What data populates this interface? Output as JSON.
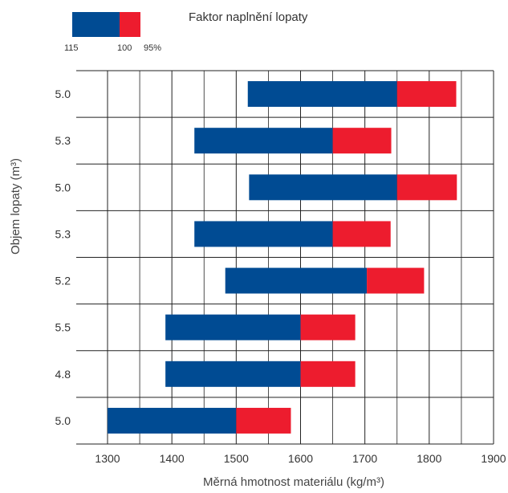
{
  "chart_data": {
    "type": "bar",
    "title": "Faktor naplnění lopaty",
    "xlabel": "Měrná hmotnost materiálu (kg/m³)",
    "ylabel": "Objem lopaty (m³)",
    "xlim": [
      1300,
      1900
    ],
    "x_ticks": [
      "1300",
      "1400",
      "1500",
      "1600",
      "1700",
      "1800",
      "1900"
    ],
    "grid": true,
    "legend": {
      "position": "top-left",
      "labels": [
        "115",
        "100",
        "95%"
      ]
    },
    "colors": {
      "blue": "#004B93",
      "red": "#ED1C2E",
      "grid": "#222222"
    },
    "categories": [
      "5.0",
      "5.3",
      "5.0",
      "5.3",
      "5.2",
      "5.5",
      "4.8",
      "5.0"
    ],
    "bars": [
      {
        "label": "5.0",
        "start": 1518,
        "mid": 1750,
        "end": 1842
      },
      {
        "label": "5.3",
        "start": 1435,
        "mid": 1650,
        "end": 1741
      },
      {
        "label": "5.0",
        "start": 1520,
        "mid": 1750,
        "end": 1843
      },
      {
        "label": "5.3",
        "start": 1435,
        "mid": 1650,
        "end": 1740
      },
      {
        "label": "5.2",
        "start": 1483,
        "mid": 1703,
        "end": 1792
      },
      {
        "label": "5.5",
        "start": 1390,
        "mid": 1600,
        "end": 1685
      },
      {
        "label": "4.8",
        "start": 1390,
        "mid": 1600,
        "end": 1685
      },
      {
        "label": "5.0",
        "start": 1300,
        "mid": 1500,
        "end": 1585
      }
    ]
  }
}
